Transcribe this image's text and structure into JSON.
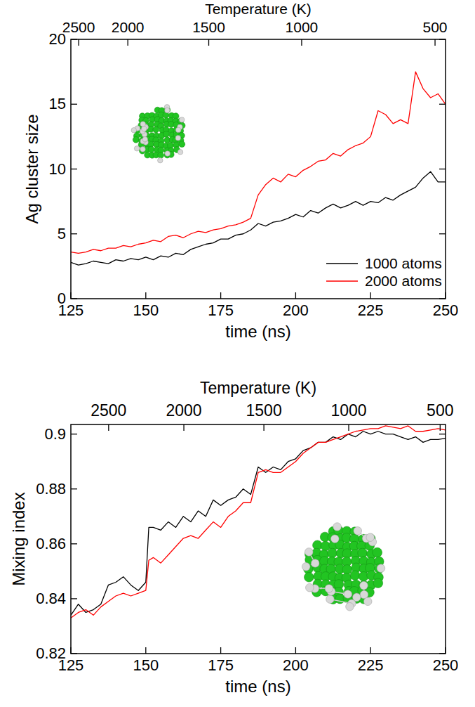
{
  "chart_data": [
    {
      "type": "line",
      "xlabel": "time (ns)",
      "ylabel": "Ag cluster size",
      "x2label": "Temperature (K)",
      "x": [
        125,
        127.5,
        130,
        132.5,
        135,
        137.5,
        140,
        142.5,
        145,
        147.5,
        150,
        152.5,
        155,
        157.5,
        160,
        162.5,
        165,
        167.5,
        170,
        172.5,
        175,
        177.5,
        180,
        182.5,
        185,
        187.5,
        190,
        192.5,
        195,
        197.5,
        200,
        202.5,
        205,
        207.5,
        210,
        212.5,
        215,
        217.5,
        220,
        222.5,
        225,
        227.5,
        230,
        232.5,
        235,
        237.5,
        240,
        242.5,
        245,
        247.5,
        250
      ],
      "series": [
        {
          "name": "1000 atoms",
          "color": "#000000",
          "values": [
            2.8,
            2.6,
            2.7,
            2.9,
            2.8,
            2.7,
            3.0,
            2.9,
            3.1,
            3.0,
            3.2,
            3.0,
            3.3,
            3.2,
            3.5,
            3.4,
            3.8,
            4.0,
            4.2,
            4.3,
            4.6,
            4.6,
            4.9,
            5.0,
            5.3,
            5.8,
            5.6,
            5.9,
            6.0,
            6.2,
            6.5,
            6.3,
            6.8,
            6.6,
            7.0,
            7.3,
            7.0,
            7.2,
            7.5,
            7.2,
            7.5,
            7.4,
            7.8,
            7.6,
            8.0,
            8.3,
            8.6,
            9.3,
            9.8,
            9.0,
            9.0
          ]
        },
        {
          "name": "2000 atoms",
          "color": "#ff0000",
          "values": [
            3.6,
            3.5,
            3.6,
            3.8,
            3.7,
            3.9,
            3.9,
            4.1,
            4.0,
            4.2,
            4.3,
            4.5,
            4.4,
            4.8,
            4.9,
            4.7,
            5.0,
            5.2,
            5.1,
            5.3,
            5.4,
            5.6,
            5.7,
            5.9,
            6.2,
            8.0,
            8.8,
            9.3,
            9.0,
            9.6,
            9.4,
            9.9,
            10.2,
            10.6,
            10.7,
            11.2,
            11.0,
            11.5,
            11.8,
            12.0,
            12.5,
            14.5,
            14.2,
            13.5,
            13.8,
            13.5,
            17.5,
            16.2,
            15.5,
            15.8,
            15.0
          ]
        }
      ],
      "xlim": [
        125,
        250
      ],
      "xticks": [
        125,
        150,
        175,
        200,
        225,
        250
      ],
      "x2ticks": [
        {
          "value": 127.6,
          "label": "2500"
        },
        {
          "value": 144,
          "label": "2000"
        },
        {
          "value": 171,
          "label": "1500"
        },
        {
          "value": 202,
          "label": "1000"
        },
        {
          "value": 246.5,
          "label": "500"
        }
      ],
      "ylim": [
        0,
        20
      ],
      "yticks": [
        0,
        5,
        10,
        15,
        20
      ],
      "legend": "lower right"
    },
    {
      "type": "line",
      "xlabel": "time (ns)",
      "ylabel": "Mixing index",
      "x2label": "Temperature (K)",
      "x": [
        125,
        127.5,
        130,
        132.5,
        135,
        137.5,
        140,
        142.5,
        145,
        147.5,
        150,
        151,
        152.5,
        155,
        157.5,
        160,
        162.5,
        165,
        167.5,
        170,
        172.5,
        175,
        177.5,
        180,
        182.5,
        185,
        187.5,
        190,
        192.5,
        195,
        197.5,
        200,
        202.5,
        205,
        207.5,
        210,
        212.5,
        215,
        217.5,
        220,
        222.5,
        225,
        227.5,
        230,
        232.5,
        235,
        237.5,
        240,
        242.5,
        245,
        247.5,
        250
      ],
      "series": [
        {
          "color": "#000000",
          "values": [
            0.834,
            0.838,
            0.835,
            0.836,
            0.838,
            0.845,
            0.846,
            0.848,
            0.845,
            0.843,
            0.846,
            0.866,
            0.866,
            0.865,
            0.868,
            0.866,
            0.87,
            0.868,
            0.872,
            0.87,
            0.876,
            0.874,
            0.876,
            0.877,
            0.88,
            0.878,
            0.888,
            0.886,
            0.888,
            0.887,
            0.89,
            0.891,
            0.894,
            0.895,
            0.897,
            0.897,
            0.899,
            0.898,
            0.9,
            0.899,
            0.901,
            0.9,
            0.901,
            0.9,
            0.9,
            0.899,
            0.898,
            0.899,
            0.897,
            0.898,
            0.898,
            0.8985
          ]
        },
        {
          "color": "#ff0000",
          "values": [
            0.833,
            0.835,
            0.836,
            0.834,
            0.837,
            0.839,
            0.841,
            0.842,
            0.841,
            0.842,
            0.843,
            0.854,
            0.855,
            0.853,
            0.856,
            0.859,
            0.862,
            0.863,
            0.862,
            0.865,
            0.868,
            0.866,
            0.87,
            0.872,
            0.875,
            0.875,
            0.886,
            0.887,
            0.886,
            0.886,
            0.888,
            0.89,
            0.893,
            0.895,
            0.897,
            0.897,
            0.898,
            0.899,
            0.9,
            0.901,
            0.9015,
            0.902,
            0.902,
            0.903,
            0.9025,
            0.902,
            0.903,
            0.901,
            0.901,
            0.9015,
            0.902,
            0.9015
          ]
        }
      ],
      "xlim": [
        125,
        250
      ],
      "xticks": [
        125,
        150,
        175,
        200,
        225,
        250
      ],
      "x2ticks": [
        {
          "value": 137.6,
          "label": "2500"
        },
        {
          "value": 162.7,
          "label": "2000"
        },
        {
          "value": 189.4,
          "label": "1500"
        },
        {
          "value": 217.7,
          "label": "1000"
        },
        {
          "value": 248.2,
          "label": "500"
        }
      ],
      "ylim": [
        0.82,
        0.9035
      ],
      "yticks": [
        0.82,
        0.84,
        0.86,
        0.88,
        0.9
      ]
    }
  ]
}
